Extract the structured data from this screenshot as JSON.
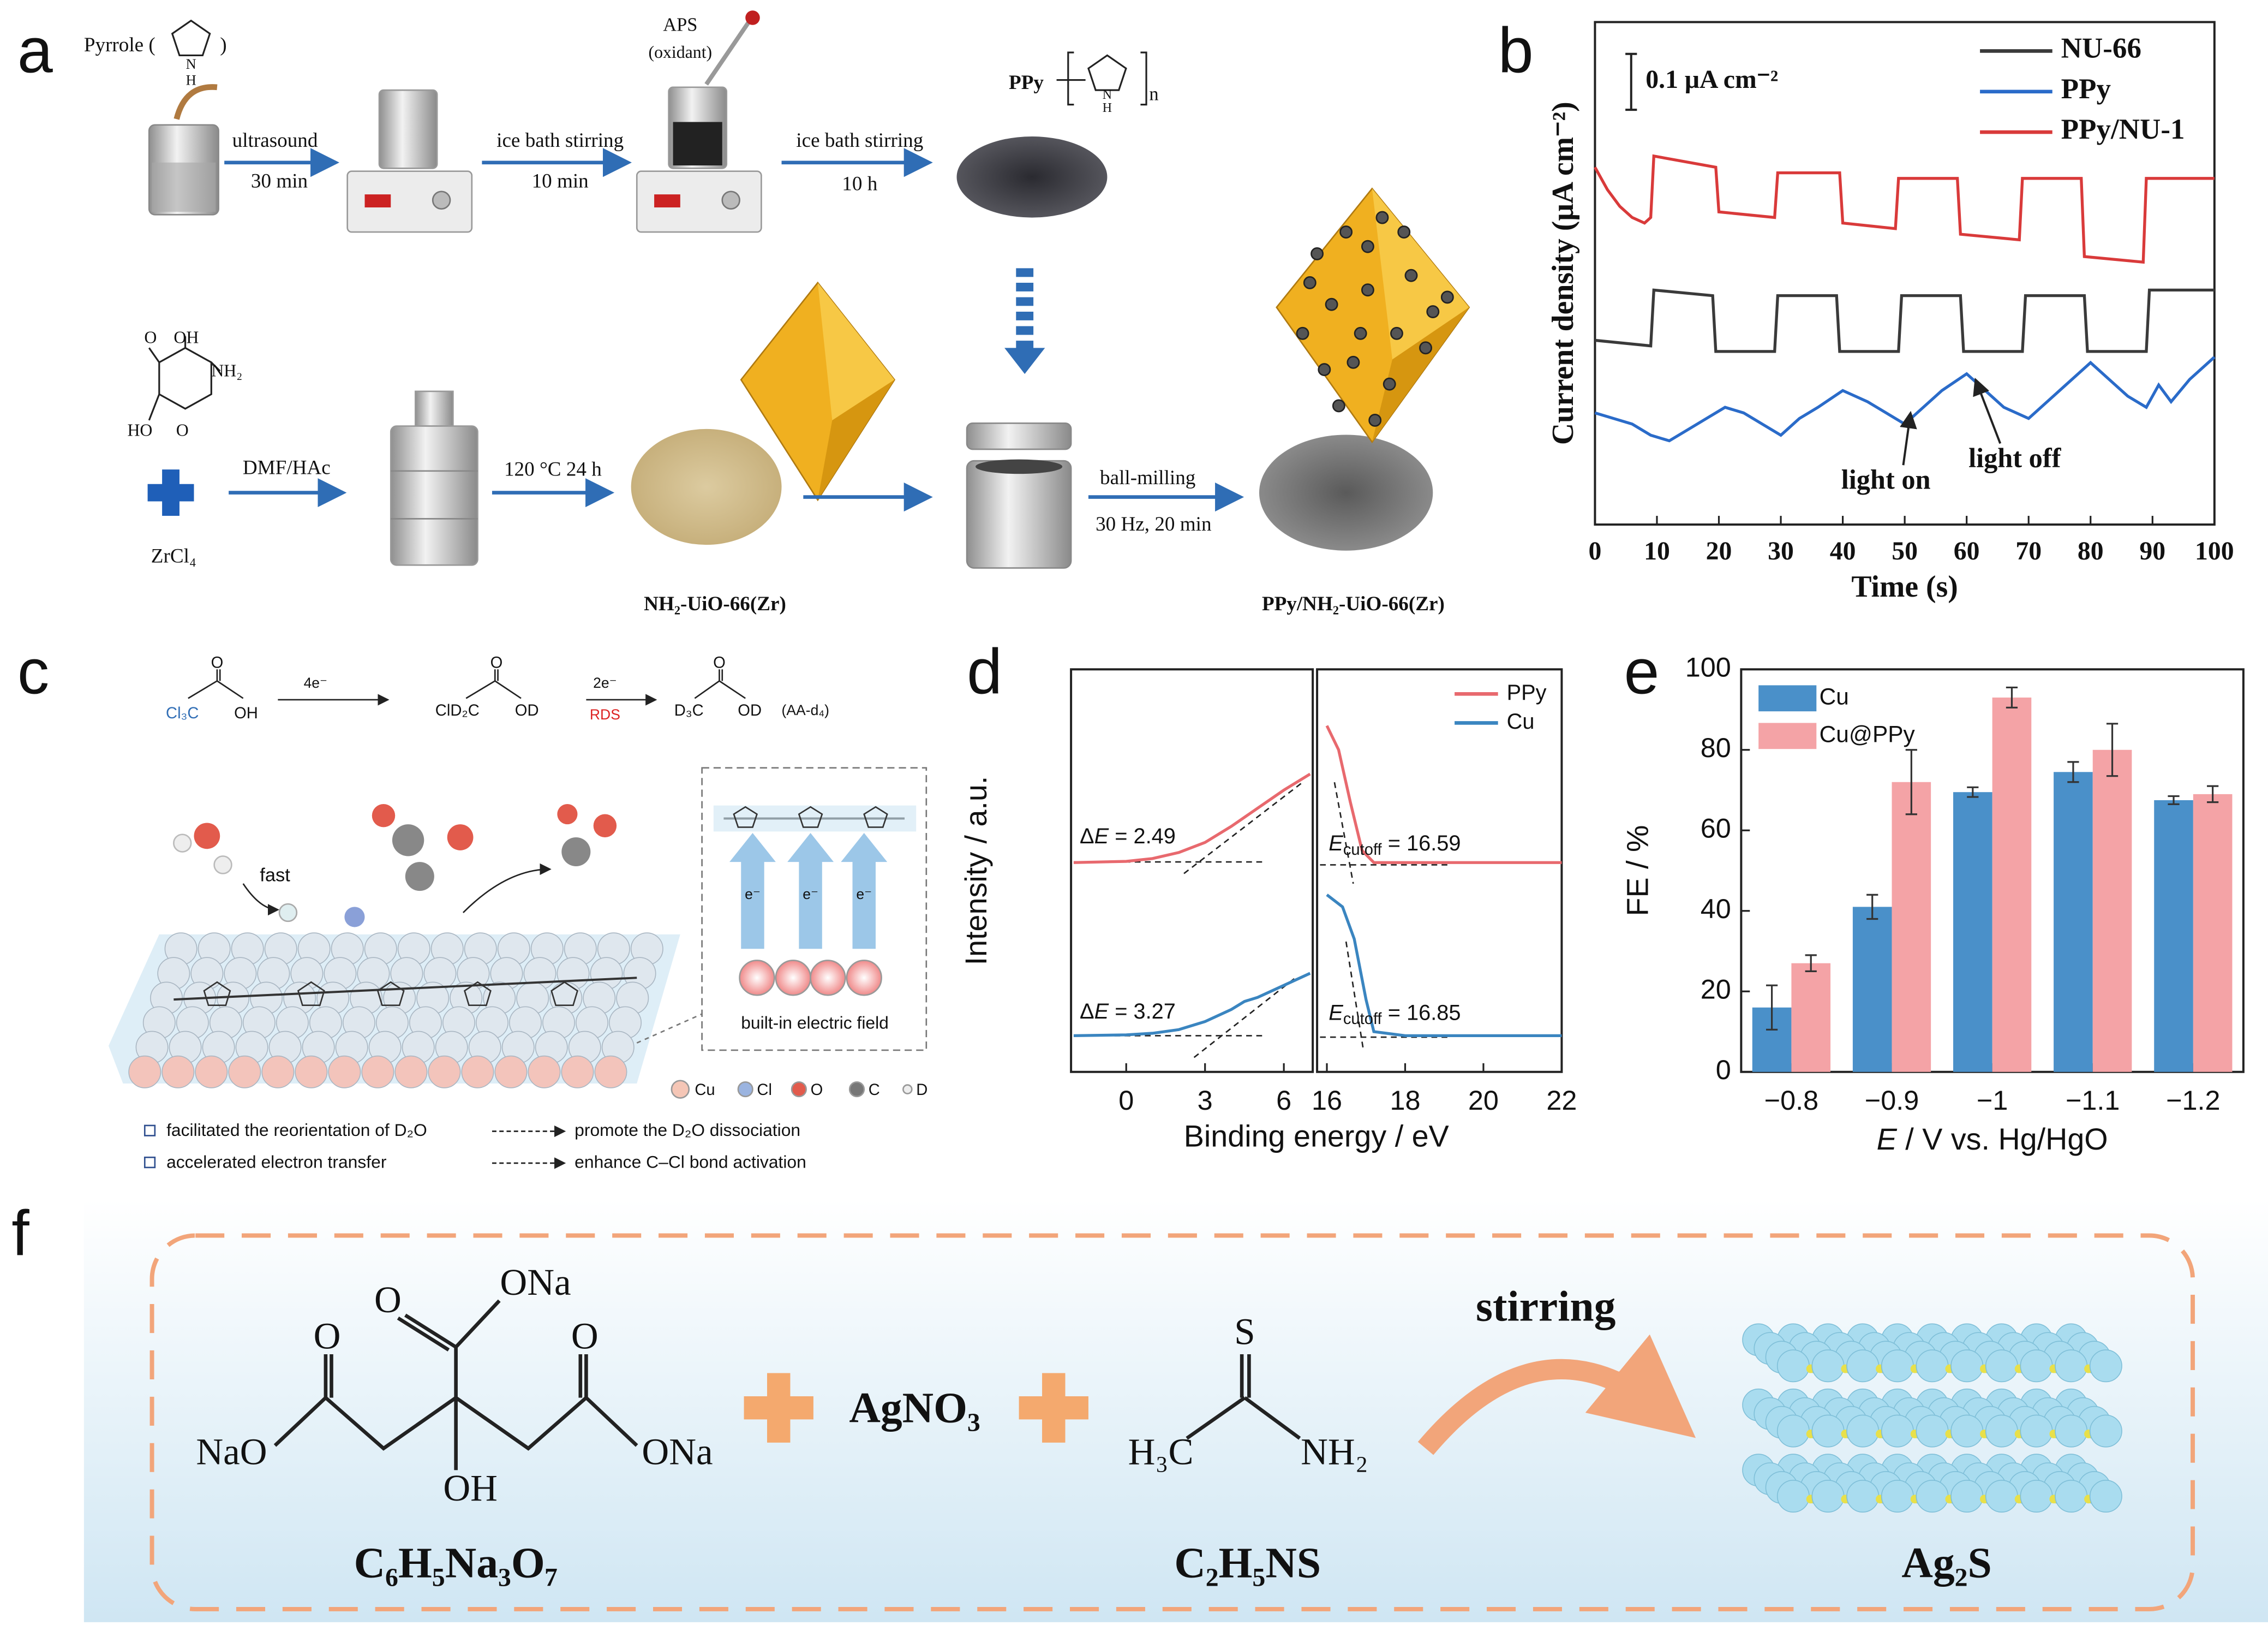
{
  "panel_labels": [
    "a",
    "b",
    "c",
    "d",
    "e",
    "f"
  ],
  "scheme_a": {
    "pyrrole": "Pyrrole (",
    "pyrrole_close": ")",
    "pyrrole_N": "N",
    "pyrrole_H": "H",
    "step1_top": "ultrasound",
    "step1_bottom": "30 min",
    "step2_top": "ice bath stirring",
    "step2_bottom": "10 min",
    "aps": "APS",
    "oxidant": "(oxidant)",
    "step3_top": "ice bath stirring",
    "step3_bottom": "10 h",
    "ppy": "PPy",
    "ppy_N": "N",
    "ppy_H": "H",
    "ppy_n": "n",
    "linker_O1": "O",
    "linker_OH": "OH",
    "linker_NH2": "NH₂",
    "linker_HO": "HO",
    "linker_O2": "O",
    "zrcl4": "ZrCl₄",
    "step4": "DMF/HAc",
    "step5": "120 °C 24 h",
    "mof": "NH₂-UiO-66(Zr)",
    "step6_top": "ball-milling",
    "step6_bottom": "30 Hz, 20 min",
    "composite": "PPy/NH₂-UiO-66(Zr)"
  },
  "scheme_c": {
    "reactant_o": "O",
    "reactant_cl": "Cl₃C",
    "reactant_oh": "OH",
    "step1": "4e⁻",
    "int_o": "O",
    "int_cl": "ClD₂C",
    "int_od": "OD",
    "step2": "2e⁻",
    "rds": "RDS",
    "prod_o": "O",
    "prod": "D₃C",
    "prod_od": "OD",
    "prod_name": "(AA-d₄)",
    "fast": "fast",
    "electrons": [
      "e⁻",
      "e⁻",
      "e⁻"
    ],
    "field": "built-in electric field",
    "legend": [
      "Cu",
      "Cl",
      "O",
      "C",
      "D"
    ],
    "notes": [
      [
        "facilitated the reorientation of D₂O",
        "promote the D₂O dissociation"
      ],
      [
        "accelerated electron transfer",
        "enhance C–Cl bond activation"
      ]
    ]
  },
  "chart_data": [
    {
      "type": "line",
      "x_label": "Time (s)",
      "y_label": "Current density (μA cm⁻²)",
      "xlim": [
        0,
        100
      ],
      "xticks": [
        0,
        10,
        20,
        30,
        40,
        50,
        60,
        70,
        80,
        90,
        100
      ],
      "ylim": [
        0,
        0.9
      ],
      "scale_bar": {
        "value": 0.1,
        "label": "0.1 μA cm⁻²"
      },
      "annotations": [
        "light on",
        "light off"
      ],
      "legend": "upper right",
      "series": [
        {
          "name": "NU-66",
          "color": "#3a3a3a",
          "x": [
            0,
            9,
            9.5,
            19,
            19.5,
            29,
            29.5,
            39,
            39.5,
            49,
            49.5,
            59,
            59.5,
            69,
            69.5,
            79,
            79.5,
            89,
            89.5,
            100
          ],
          "values": [
            0.33,
            0.32,
            0.42,
            0.41,
            0.31,
            0.31,
            0.41,
            0.41,
            0.31,
            0.31,
            0.41,
            0.41,
            0.31,
            0.31,
            0.41,
            0.41,
            0.31,
            0.31,
            0.42,
            0.42
          ]
        },
        {
          "name": "PPy",
          "color": "#2a6bc9",
          "x": [
            0,
            3,
            6,
            9,
            12,
            15,
            18,
            21,
            24,
            27,
            30,
            33,
            36,
            40,
            44,
            47,
            50,
            53,
            56,
            60,
            63,
            66,
            70,
            73,
            76,
            80,
            83,
            86,
            89,
            91,
            93,
            96,
            100
          ],
          "values": [
            0.2,
            0.19,
            0.18,
            0.16,
            0.15,
            0.17,
            0.19,
            0.21,
            0.2,
            0.18,
            0.16,
            0.19,
            0.21,
            0.24,
            0.22,
            0.2,
            0.18,
            0.21,
            0.24,
            0.27,
            0.24,
            0.21,
            0.19,
            0.22,
            0.25,
            0.29,
            0.26,
            0.23,
            0.21,
            0.25,
            0.22,
            0.26,
            0.3
          ]
        },
        {
          "name": "PPy/NU-1",
          "color": "#d93a3a",
          "x": [
            0,
            2,
            4,
            6,
            8,
            9,
            9.5,
            19.5,
            20,
            29,
            29.5,
            39.5,
            40,
            48.5,
            49,
            58.5,
            59,
            68.5,
            69,
            78.5,
            79,
            88.5,
            89,
            100
          ],
          "values": [
            0.64,
            0.6,
            0.57,
            0.55,
            0.54,
            0.55,
            0.66,
            0.64,
            0.56,
            0.55,
            0.63,
            0.63,
            0.54,
            0.53,
            0.62,
            0.62,
            0.52,
            0.51,
            0.62,
            0.62,
            0.48,
            0.47,
            0.62,
            0.62
          ]
        }
      ]
    },
    {
      "type": "line",
      "x_label": "Binding energy / eV",
      "y_label": "Intensity / a.u.",
      "ylim": [
        0,
        100
      ],
      "legend": "upper right",
      "panels": [
        {
          "xlim": [
            -2.1,
            7.1
          ],
          "xticks": [
            0,
            3,
            6
          ]
        },
        {
          "xlim": [
            15.75,
            22
          ],
          "xticks": [
            16,
            18,
            20,
            22
          ]
        }
      ],
      "annotations": [
        {
          "delta": "Δ",
          "symbol": "E",
          "text": " = 2.49"
        },
        {
          "symbol": "E",
          "subscript": "cutoff",
          "text": " = 16.59"
        },
        {
          "delta": "Δ",
          "symbol": "E",
          "text": " = 3.27"
        },
        {
          "symbol": "E",
          "subscript": "cutoff",
          "text": " = 16.85"
        }
      ],
      "series": [
        {
          "name": "PPy",
          "color": "#e8696e",
          "x": [
            -2,
            0,
            1,
            2,
            3,
            4,
            5,
            6,
            7,
            16,
            16.3,
            16.6,
            16.9,
            17.2,
            18,
            20,
            22
          ],
          "values": [
            52,
            52.3,
            53,
            54.5,
            57,
            61,
            65.5,
            70,
            74,
            86,
            80,
            67,
            55,
            52,
            52,
            52,
            52
          ]
        },
        {
          "name": "Cu",
          "color": "#3a85c0",
          "x": [
            -2,
            0,
            1,
            2,
            3,
            4,
            4.5,
            5,
            6,
            7,
            16,
            16.4,
            16.7,
            17,
            17.2,
            18,
            20,
            22
          ],
          "values": [
            9,
            9.2,
            9.6,
            10.5,
            12.5,
            15.5,
            17.5,
            18.5,
            21.5,
            24.5,
            44,
            41,
            33,
            18,
            10,
            9,
            9,
            9
          ]
        }
      ]
    },
    {
      "type": "bar",
      "y_label": "FE / %",
      "x_label_symbol": "E",
      "x_label": " / V vs. Hg/HgO",
      "categories": [
        "−0.8",
        "−0.9",
        "−1",
        "−1.1",
        "−1.2"
      ],
      "ylim": [
        0,
        100
      ],
      "yticks": [
        0,
        20,
        40,
        60,
        80,
        100
      ],
      "legend": "upper left",
      "series": [
        {
          "name": "Cu",
          "color": "#4a90c9",
          "values": [
            16,
            41,
            69.5,
            74.5,
            67.5
          ],
          "errors": [
            5.5,
            3,
            1.2,
            2.5,
            1
          ]
        },
        {
          "name": "Cu@PPy",
          "color": "#f4a3a6",
          "values": [
            27,
            72,
            93,
            80,
            69
          ],
          "errors": [
            2,
            8,
            2.5,
            6.5,
            2
          ]
        }
      ]
    }
  ],
  "scheme_f": {
    "citrate_ona_top": "ONa",
    "citrate_o_top": "O",
    "citrate_o_left": "O",
    "citrate_o_right": "O",
    "citrate_nao": "NaO",
    "citrate_oh": "OH",
    "citrate_ona_right": "ONa",
    "citrate_formula": "C₆H₅Na₃O₇",
    "silver": "AgNO₃",
    "taa_s": "S",
    "taa_h3c": "H₃C",
    "taa_nh2": "NH₂",
    "taa_formula": "C₂H₅NS",
    "stirring": "stirring",
    "product": "Ag₂S"
  }
}
